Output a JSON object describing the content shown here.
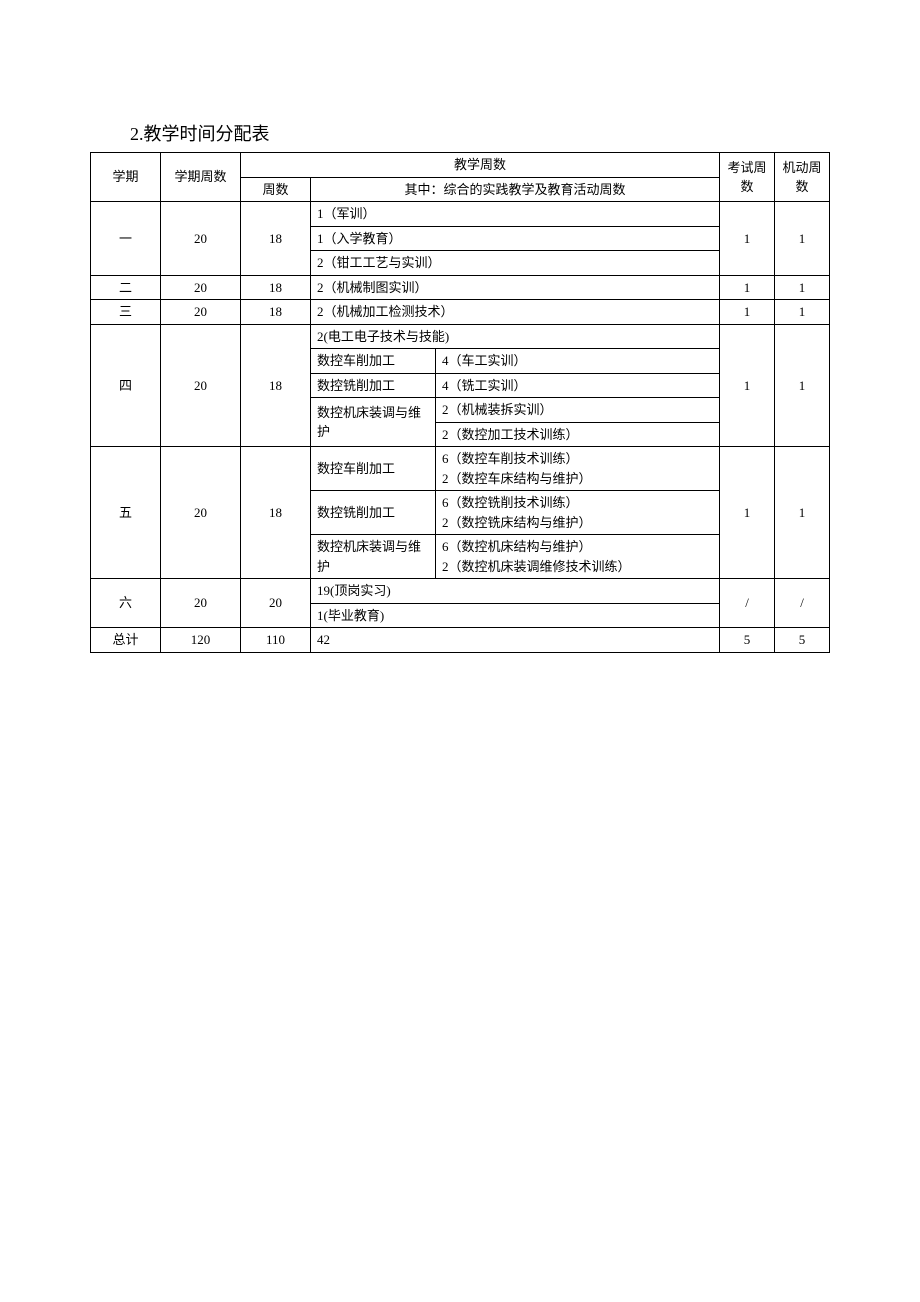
{
  "title": "2.教学时间分配表",
  "headers": {
    "semester": "学期",
    "semester_weeks": "学期周数",
    "teaching_weeks": "教学周数",
    "weeks": "周数",
    "practical_weeks": "其中：综合的实践教学及教育活动周数",
    "exam_weeks": "考试周数",
    "flex_weeks": "机动周数"
  },
  "rows": {
    "s1": {
      "semester": "一",
      "sem_weeks": "20",
      "weeks": "18",
      "items": [
        "1（军训）",
        "1（入学教育）",
        "2（钳工工艺与实训）"
      ],
      "exam": "1",
      "flex": "1"
    },
    "s2": {
      "semester": "二",
      "sem_weeks": "20",
      "weeks": "18",
      "items": [
        "2（机械制图实训）"
      ],
      "exam": "1",
      "flex": "1"
    },
    "s3": {
      "semester": "三",
      "sem_weeks": "20",
      "weeks": "18",
      "items": [
        "2（机械加工检测技术）"
      ],
      "exam": "1",
      "flex": "1"
    },
    "s4": {
      "semester": "四",
      "sem_weeks": "20",
      "weeks": "18",
      "items": {
        "r1": "2(电工电子技术与技能)",
        "r2a": "数控车削加工",
        "r2b": "4（车工实训）",
        "r3a": "数控铣削加工",
        "r3b": "4（铣工实训）",
        "r4a": "数控机床装调与维护",
        "r4b": "2（机械装拆实训）",
        "r5b": "2（数控加工技术训练）"
      },
      "exam": "1",
      "flex": "1"
    },
    "s5": {
      "semester": "五",
      "sem_weeks": "20",
      "weeks": "18",
      "items": {
        "r1a": "数控车削加工",
        "r1b": "6（数控车削技术训练）",
        "r1c": "2（数控车床结构与维护）",
        "r2a": "数控铣削加工",
        "r2b": "6（数控铣削技术训练）",
        "r2c": "2（数控铣床结构与维护）",
        "r3a": "数控机床装调与维护",
        "r3b": "6（数控机床结构与维护）",
        "r3c": "2（数控机床装调维修技术训练）"
      },
      "exam": "1",
      "flex": "1"
    },
    "s6": {
      "semester": "六",
      "sem_weeks": "20",
      "weeks": "20",
      "items": [
        "19(顶岗实习)",
        "1(毕业教育)"
      ],
      "exam": "/",
      "flex": "/"
    },
    "total": {
      "label": "总计",
      "sem_weeks": "120",
      "weeks": "110",
      "practical": "42",
      "exam": "5",
      "flex": "5"
    }
  }
}
